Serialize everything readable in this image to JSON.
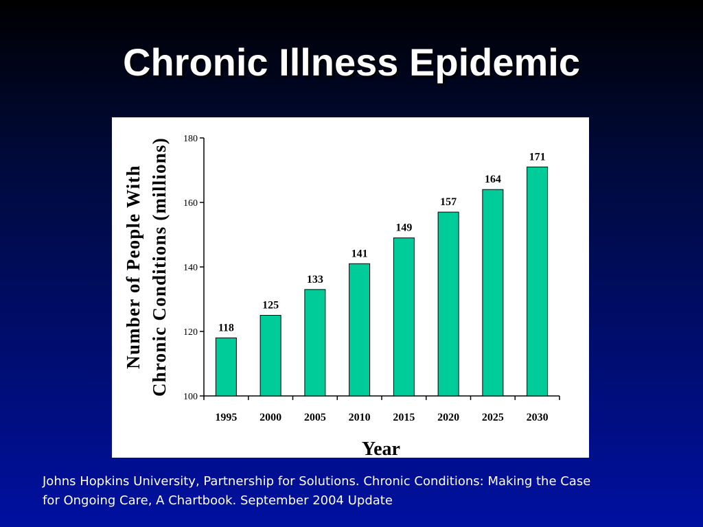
{
  "slide": {
    "title": "Chronic Illness Epidemic",
    "citation_lines": [
      "Johns Hopkins University, Partnership for Solutions. Chronic Conditions: Making the Case",
      "for Ongoing Care, A Chartbook. September 2004 Update"
    ]
  },
  "chart_data": {
    "type": "bar",
    "categories": [
      "1995",
      "2000",
      "2005",
      "2010",
      "2015",
      "2020",
      "2025",
      "2030"
    ],
    "values": [
      118,
      125,
      133,
      141,
      149,
      157,
      164,
      171
    ],
    "data_labels": [
      "118",
      "125",
      "133",
      "141",
      "149",
      "157",
      "164",
      "171"
    ],
    "xlabel": "Year",
    "ylabel_lines": [
      "Number of People With",
      "Chronic Conditions (millions)"
    ],
    "ylim": [
      100,
      180
    ],
    "yticks": [
      100,
      120,
      140,
      160,
      180
    ],
    "grid": false,
    "colors": {
      "bar": "#00cc99",
      "bar_edge": "#000000",
      "axis": "#000000"
    }
  }
}
